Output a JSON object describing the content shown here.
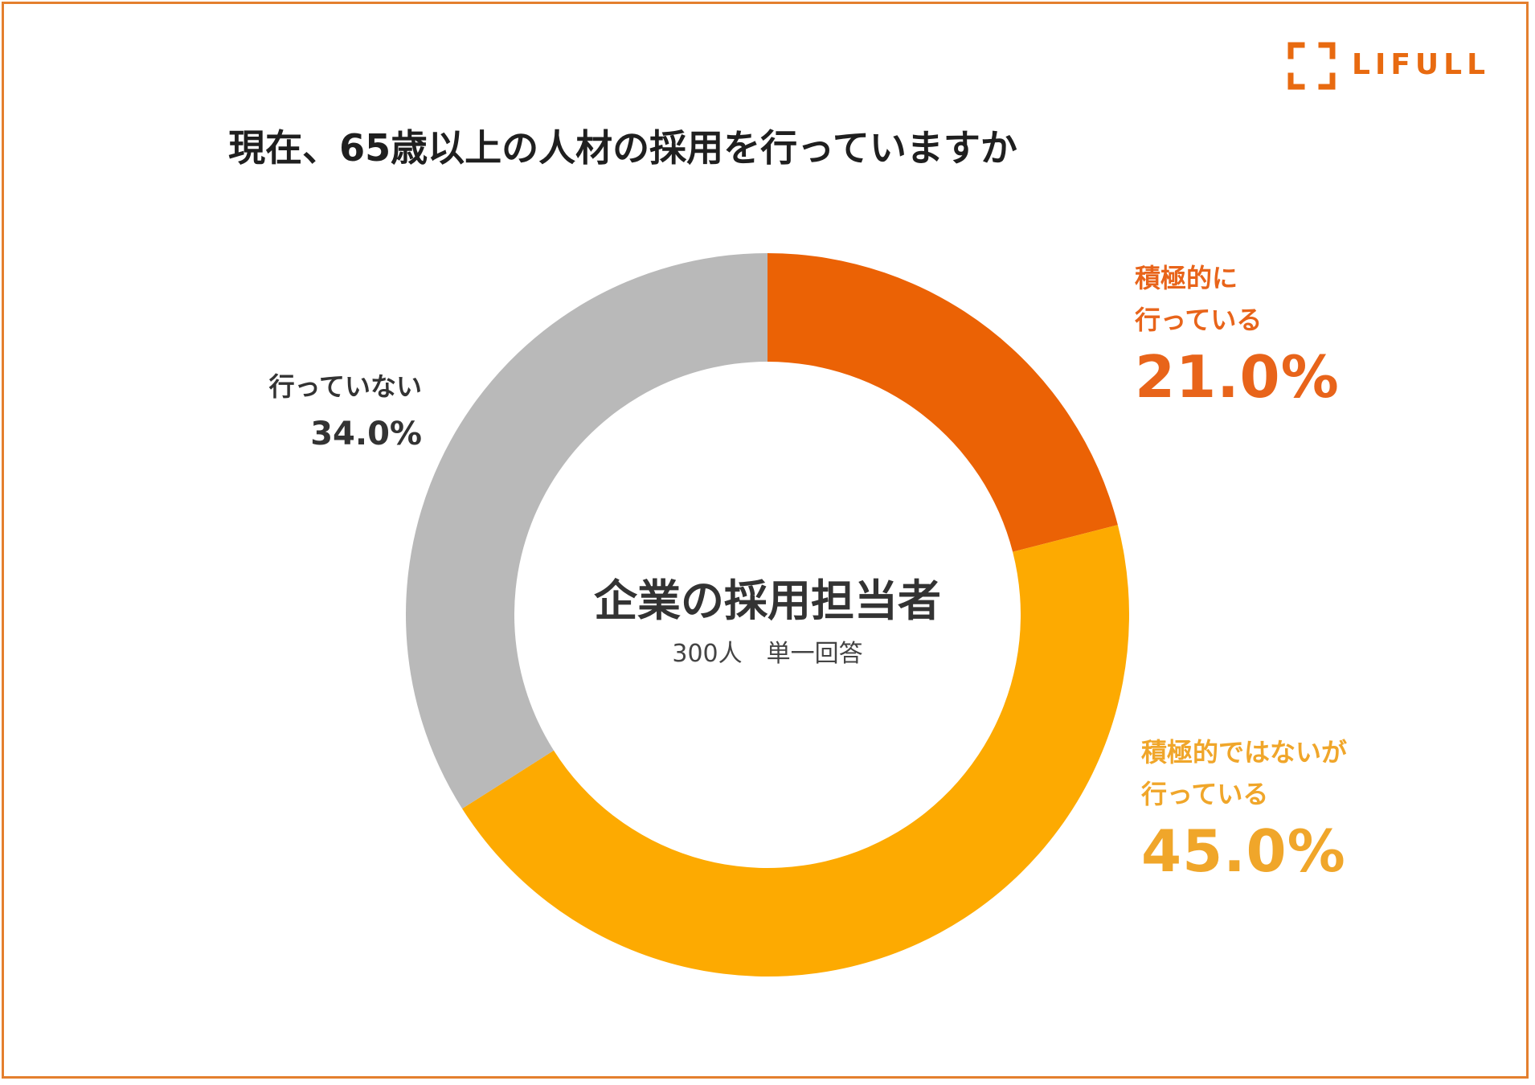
{
  "brand": {
    "logo_text": "LIFULL",
    "accent": "#E86A10",
    "frame_color": "#E47F2E"
  },
  "title": "現在、65歳以上の人材の採用を行っていますか",
  "center": {
    "title": "企業の採用担当者",
    "subtitle": "300人　単一回答"
  },
  "chart_data": {
    "type": "pie",
    "variant": "donut",
    "title": "現在、65歳以上の人材の採用を行っていますか",
    "unit": "%",
    "slices": [
      {
        "label_lines": [
          "積極的に",
          "行っている"
        ],
        "value": 21.0,
        "value_label": "21.0%",
        "color": "#EB6205"
      },
      {
        "label_lines": [
          "積極的ではないが",
          "行っている"
        ],
        "value": 45.0,
        "value_label": "45.0%",
        "color": "#FDAA01"
      },
      {
        "label_lines": [
          "行っていない"
        ],
        "value": 34.0,
        "value_label": "34.0%",
        "color": "#B9B9B9"
      }
    ],
    "start": "12 o'clock",
    "direction": "clockwise",
    "legend": "none"
  }
}
